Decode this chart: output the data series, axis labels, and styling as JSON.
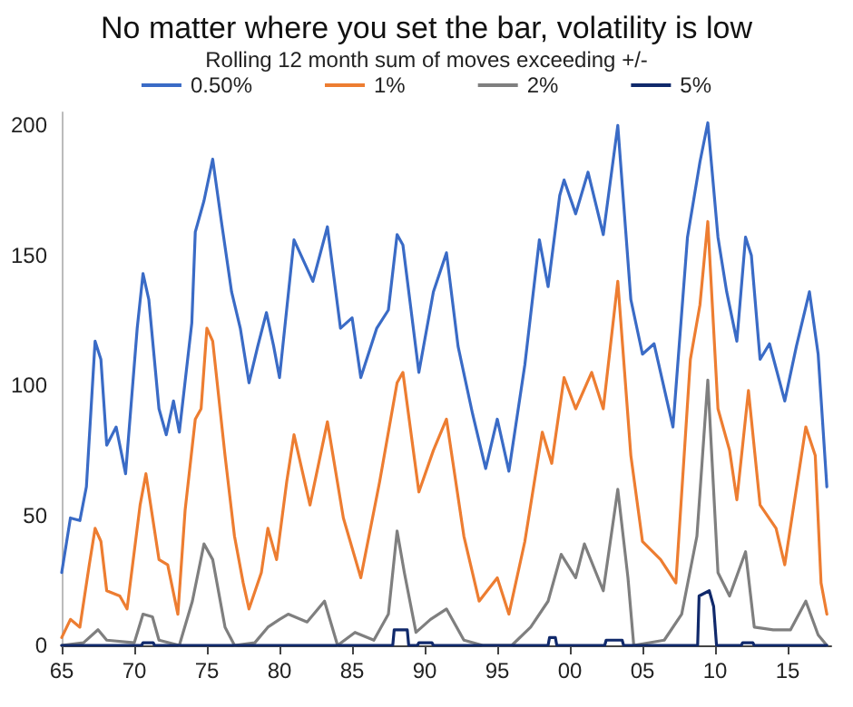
{
  "chart_data": {
    "type": "line",
    "title": "No matter where you set the bar, volatility is low",
    "subtitle": "Rolling 12 month sum of moves exceeding +/-",
    "xlim": [
      1965,
      2018
    ],
    "xticks": [
      {
        "value": 1965,
        "label": "65"
      },
      {
        "value": 1970,
        "label": "70"
      },
      {
        "value": 1975,
        "label": "75"
      },
      {
        "value": 1980,
        "label": "80"
      },
      {
        "value": 1985,
        "label": "85"
      },
      {
        "value": 1990,
        "label": "90"
      },
      {
        "value": 1995,
        "label": "95"
      },
      {
        "value": 2000,
        "label": "00"
      },
      {
        "value": 2005,
        "label": "05"
      },
      {
        "value": 2010,
        "label": "10"
      },
      {
        "value": 2015,
        "label": "15"
      }
    ],
    "ylim": [
      0,
      205
    ],
    "yticks": [
      0,
      50,
      100,
      150,
      200
    ],
    "grid": false,
    "legend": "top",
    "marker": "none",
    "line_style": "solid",
    "series": [
      {
        "name": "0.50%",
        "color": "#3a6bc6",
        "x": [
          1965,
          1965.6,
          1966.25,
          1966.7,
          1967.3,
          1967.7,
          1968.1,
          1968.75,
          1969.4,
          1970.2,
          1970.6,
          1971,
          1971.7,
          1972.2,
          1972.7,
          1973.1,
          1973.96,
          1974.2,
          1974.8,
          1975.4,
          1976,
          1976.7,
          1977.3,
          1977.9,
          1978.5,
          1979.1,
          1979.6,
          1980,
          1981,
          1982.3,
          1983.3,
          1984.2,
          1985,
          1985.6,
          1986.7,
          1987.5,
          1988.1,
          1988.5,
          1989.6,
          1990.6,
          1991.5,
          1992.3,
          1993.3,
          1994.2,
          1995,
          1995.8,
          1996.9,
          1997.9,
          1998.5,
          1999.3,
          1999.6,
          2000.4,
          2001.25,
          2002.3,
          2003.3,
          2004.2,
          2005,
          2005.8,
          2007.1,
          2008.1,
          2008.96,
          2009.5,
          2010.2,
          2010.8,
          2011.5,
          2012.1,
          2012.5,
          2013.1,
          2013.75,
          2014.8,
          2015.6,
          2016.5,
          2017.1,
          2017.7
        ],
        "values": [
          28,
          49,
          48,
          61,
          117,
          110,
          77,
          84,
          66,
          122,
          143,
          133,
          91,
          81,
          94,
          82,
          124,
          159,
          171,
          187,
          163,
          136,
          122,
          101,
          115,
          128,
          115,
          103,
          156,
          140,
          161,
          122,
          126,
          103,
          122,
          129,
          158,
          154,
          105,
          136,
          151,
          115,
          89,
          68,
          87,
          67,
          108,
          156,
          138,
          173,
          179,
          166,
          182,
          158,
          200,
          133,
          112,
          116,
          84,
          157,
          186,
          201,
          157,
          136,
          117,
          157,
          150,
          110,
          116,
          94,
          115,
          136,
          112,
          61
        ]
      },
      {
        "name": "1%",
        "color": "#ed7d31",
        "x": [
          1965,
          1965.6,
          1966.25,
          1966.9,
          1967.3,
          1967.7,
          1968.1,
          1969,
          1969.5,
          1970.4,
          1970.8,
          1971.7,
          1972.3,
          1973,
          1973.5,
          1974.2,
          1974.6,
          1975,
          1975.4,
          1976.25,
          1976.9,
          1977.5,
          1977.9,
          1978.75,
          1979.2,
          1979.8,
          1980.5,
          1981,
          1982.1,
          1983.3,
          1984.4,
          1985.6,
          1986.9,
          1988.1,
          1988.5,
          1989.6,
          1990.6,
          1991.5,
          1992.7,
          1993.75,
          1995,
          1995.8,
          1996.9,
          1998.1,
          1998.75,
          1999.6,
          2000.4,
          2001.5,
          2002.3,
          2003.3,
          2004.2,
          2005,
          2006.25,
          2007.3,
          2008.3,
          2008.96,
          2009.5,
          2010.2,
          2011,
          2011.5,
          2012.3,
          2013.1,
          2014.2,
          2014.8,
          2016.25,
          2016.9,
          2017.3,
          2017.7
        ],
        "values": [
          3,
          10,
          7,
          31,
          45,
          40,
          21,
          19,
          14,
          54,
          66,
          33,
          31,
          12,
          52,
          87,
          91,
          122,
          117,
          73,
          42,
          24,
          14,
          28,
          45,
          33,
          63,
          81,
          54,
          86,
          49,
          26,
          63,
          101,
          105,
          59,
          75,
          87,
          42,
          17,
          26,
          12,
          40,
          82,
          70,
          103,
          91,
          105,
          91,
          140,
          73,
          40,
          33,
          24,
          110,
          131,
          163,
          91,
          75,
          56,
          98,
          54,
          45,
          31,
          84,
          73,
          24,
          12
        ]
      },
      {
        "name": "2%",
        "color": "#7f7f7f",
        "x": [
          1965,
          1966.5,
          1967.5,
          1968.1,
          1970,
          1970.6,
          1971.25,
          1971.7,
          1973.1,
          1974,
          1974.8,
          1975.4,
          1976.25,
          1976.9,
          1978.3,
          1979.2,
          1980,
          1980.6,
          1981.9,
          1983.1,
          1984,
          1985.2,
          1986.5,
          1987.5,
          1988.1,
          1988.6,
          1989.4,
          1990.4,
          1991.5,
          1992.7,
          1994,
          1996,
          1997.3,
          1998.5,
          1999.4,
          2000.4,
          2001,
          2002.3,
          2003.3,
          2004,
          2004.4,
          2006.5,
          2007.7,
          2008.75,
          2009.5,
          2010.2,
          2011,
          2012.1,
          2012.7,
          2014,
          2015.2,
          2016.25,
          2017.1,
          2017.7
        ],
        "values": [
          0,
          1,
          6,
          2,
          1,
          12,
          11,
          2,
          0,
          17,
          39,
          33,
          7,
          0,
          1,
          7,
          10,
          12,
          9,
          17,
          0,
          5,
          2,
          12,
          44,
          28,
          5,
          10,
          14,
          2,
          0,
          0,
          7,
          17,
          35,
          26,
          39,
          21,
          60,
          26,
          0,
          2,
          12,
          42,
          102,
          28,
          19,
          36,
          7,
          6,
          6,
          17,
          4,
          0
        ]
      },
      {
        "name": "5%",
        "color": "#10296b",
        "x": [
          1965,
          1970.5,
          1970.6,
          1971.3,
          1971.4,
          1987.8,
          1987.9,
          1988.8,
          1988.9,
          1989.5,
          1989.6,
          1990.5,
          1990.6,
          1998.5,
          1998.6,
          1999,
          1999.1,
          2002.4,
          2002.5,
          2003.6,
          2003.7,
          2008.8,
          2008.9,
          2009.6,
          2009.9,
          2010.1,
          2011.8,
          2011.9,
          2012.6,
          2012.7,
          2017.7
        ],
        "values": [
          0,
          0,
          1,
          1,
          0,
          0,
          6,
          6,
          0,
          0,
          1,
          1,
          0,
          0,
          3,
          3,
          0,
          0,
          2,
          2,
          0,
          0,
          19,
          21,
          15,
          0,
          0,
          1,
          1,
          0,
          0
        ]
      }
    ]
  }
}
